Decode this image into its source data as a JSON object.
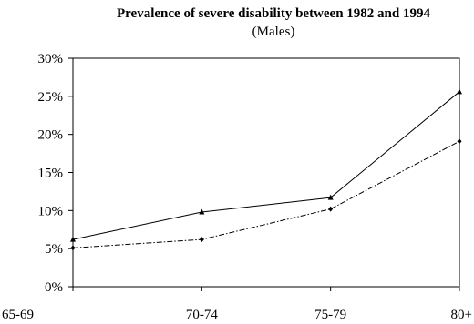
{
  "chart_data": {
    "type": "line",
    "title": "Prevalence of severe disability between 1982 and 1994",
    "subtitle": "(Males)",
    "xlabel": "",
    "ylabel": "",
    "categories": [
      "65-69",
      "70-74",
      "75-79",
      "80+"
    ],
    "y_ticks": [
      "0%",
      "5%",
      "10%",
      "15%",
      "20%",
      "25%",
      "30%"
    ],
    "ylim": [
      0,
      30
    ],
    "grid": false,
    "legend": "none",
    "series": [
      {
        "values": [
          6.2,
          9.8,
          11.7,
          25.6
        ],
        "color": "#000000",
        "line_style": "solid",
        "marker": "triangle"
      },
      {
        "values": [
          5.1,
          6.2,
          10.2,
          19.1
        ],
        "color": "#000000",
        "line_style": "dash-dot",
        "marker": "diamond"
      }
    ]
  }
}
